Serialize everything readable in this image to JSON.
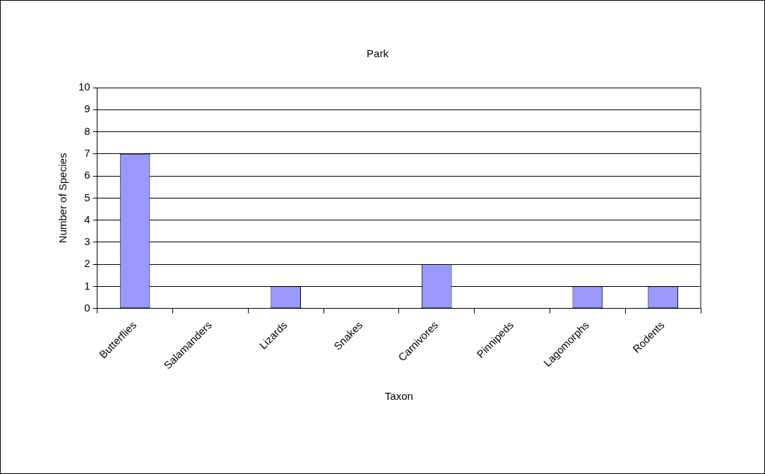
{
  "chart_data": {
    "type": "bar",
    "title": "Park",
    "xlabel": "Taxon",
    "ylabel": "Number of Species",
    "categories": [
      "Butterflies",
      "Salamanders",
      "Lizards",
      "Snakes",
      "Carnivores",
      "Pinnipeds",
      "Lagomorphs",
      "Rodents"
    ],
    "values": [
      7,
      0,
      1,
      0,
      2,
      0,
      1,
      1
    ],
    "color": "#9999ff",
    "ylim": [
      0,
      10
    ],
    "yticks": [
      0,
      1,
      2,
      3,
      4,
      5,
      6,
      7,
      8,
      9,
      10
    ],
    "grid": "y",
    "legend": false
  }
}
